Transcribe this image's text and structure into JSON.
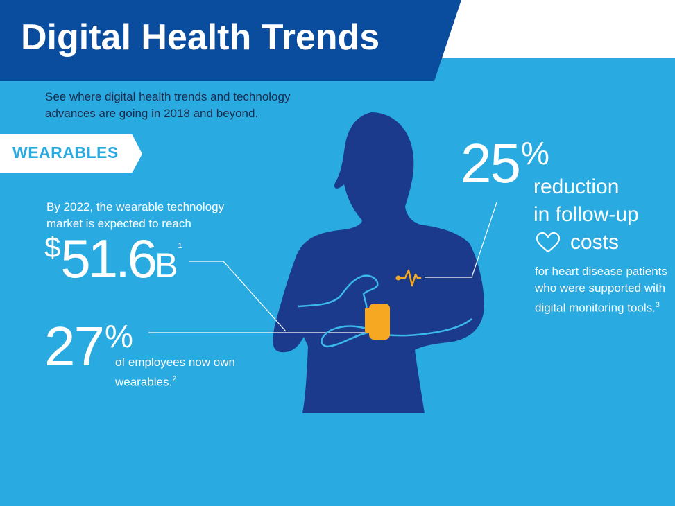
{
  "header": {
    "title": "Digital Health Trends"
  },
  "intro": {
    "subtitle": "See where digital health trends and technology advances are going in 2018 and beyond."
  },
  "section": {
    "label": "WEARABLES"
  },
  "market": {
    "text": "By 2022, the wearable technology market is expected to reach",
    "currency": "$",
    "value": "51.6",
    "unit": "B",
    "ref": "1"
  },
  "employees": {
    "value": "27",
    "percent": "%",
    "text": "of employees now own wearables.",
    "ref": "2"
  },
  "heart": {
    "value": "25",
    "percent": "%",
    "line1": "reduction",
    "line2": "in follow-up",
    "line3": "costs",
    "text": "for heart disease patients who were supported with digital monitoring tools.",
    "ref": "3"
  },
  "icons": [
    "heart-outline-icon",
    "heartbeat-pulse-icon",
    "smartwatch-icon"
  ],
  "colors": {
    "background": "#29abe2",
    "banner": "#0a4d9e",
    "silhouette": "#1b3a8c",
    "accent": "#f7a823",
    "dark_text": "#1b2a4a"
  }
}
